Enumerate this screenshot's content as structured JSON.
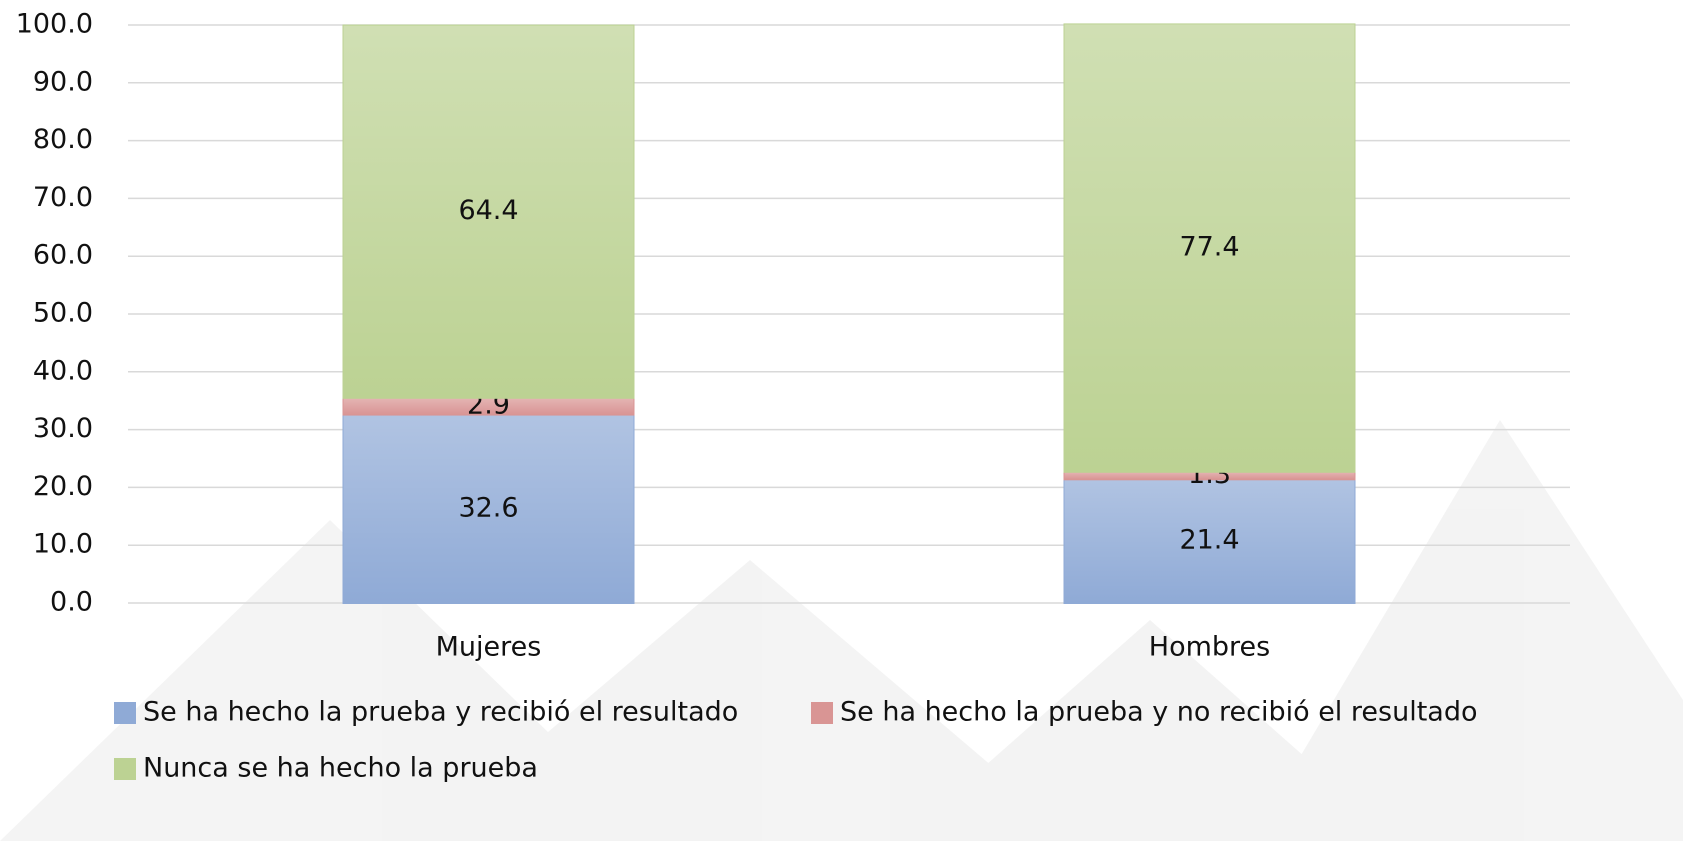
{
  "chart_data": {
    "type": "stacked_bar",
    "categories": [
      "Mujeres",
      "Hombres"
    ],
    "series": [
      {
        "name": "Se ha hecho la prueba y recibió el resultado",
        "color": "#8faad6",
        "values": [
          32.6,
          21.4
        ]
      },
      {
        "name": "Se ha hecho la prueba y no recibió el resultado",
        "color": "#d99594",
        "values": [
          2.9,
          1.3
        ]
      },
      {
        "name": "Nunca se ha hecho la prueba",
        "color": "#bcd293",
        "values": [
          64.4,
          77.4
        ]
      }
    ],
    "ylim": [
      0,
      100
    ],
    "yticks": [
      {
        "value": 0,
        "label": "0.0"
      },
      {
        "value": 10,
        "label": "10.0"
      },
      {
        "value": 20,
        "label": "20.0"
      },
      {
        "value": 30,
        "label": "30.0"
      },
      {
        "value": 40,
        "label": "40.0"
      },
      {
        "value": 50,
        "label": "50.0"
      },
      {
        "value": 60,
        "label": "60.0"
      },
      {
        "value": 70,
        "label": "70.0"
      },
      {
        "value": 80,
        "label": "80.0"
      },
      {
        "value": 90,
        "label": "90.0"
      },
      {
        "value": 100,
        "label": "100.0"
      }
    ],
    "grid": true,
    "legend": "bottom"
  }
}
